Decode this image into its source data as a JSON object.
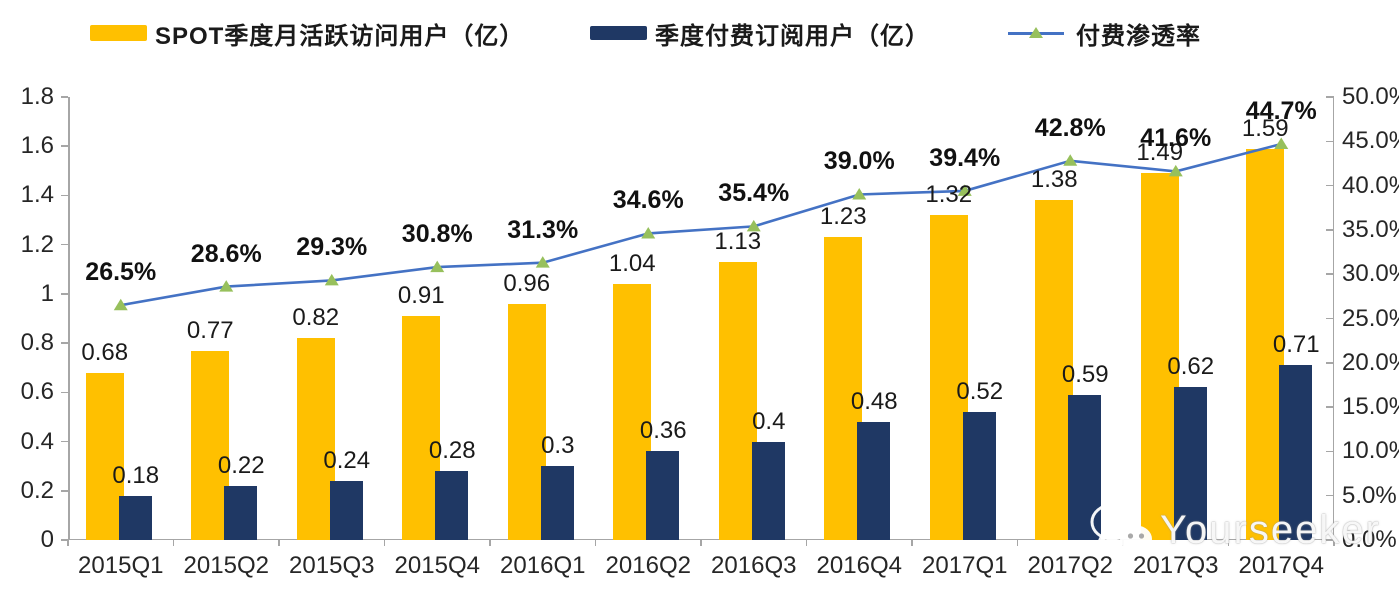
{
  "legend": {
    "items": [
      {
        "label": "SPOT季度月活跃访问用户（亿）",
        "swatch": "bar",
        "color": "#FFC000"
      },
      {
        "label": "季度付费订阅用户（亿）",
        "swatch": "bar",
        "color": "#1F3864"
      },
      {
        "label": "付费渗透率",
        "swatch": "line-marker",
        "color": "#4472C4",
        "marker_color": "#97C05C"
      }
    ]
  },
  "watermark": {
    "text": "Yourseeker",
    "icon": "wechat-icon"
  },
  "colors": {
    "mau_bar": "#FFC000",
    "subs_bar": "#1F3864",
    "line": "#4472C4",
    "marker": "#97C05C",
    "axis": "#a6a6a6",
    "label_text": "#1a1a1a"
  },
  "chart_data": {
    "type": "bar+line",
    "title": "",
    "categories": [
      "2015Q1",
      "2015Q2",
      "2015Q3",
      "2015Q4",
      "2016Q1",
      "2016Q2",
      "2016Q3",
      "2016Q4",
      "2017Q1",
      "2017Q2",
      "2017Q3",
      "2017Q4"
    ],
    "series": [
      {
        "name": "SPOT季度月活跃访问用户（亿）",
        "type": "bar",
        "axis": "left",
        "color": "#FFC000",
        "values": [
          0.68,
          0.77,
          0.82,
          0.91,
          0.96,
          1.04,
          1.13,
          1.23,
          1.32,
          1.38,
          1.49,
          1.59
        ],
        "labels": [
          "0.68",
          "0.77",
          "0.82",
          "0.91",
          "0.96",
          "1.04",
          "1.13",
          "1.23",
          "1.32",
          "1.38",
          "1.49",
          "1.59"
        ]
      },
      {
        "name": "季度付费订阅用户（亿）",
        "type": "bar",
        "axis": "left",
        "color": "#1F3864",
        "values": [
          0.18,
          0.22,
          0.24,
          0.28,
          0.3,
          0.36,
          0.4,
          0.48,
          0.52,
          0.59,
          0.62,
          0.71
        ],
        "labels": [
          "0.18",
          "0.22",
          "0.24",
          "0.28",
          "0.3",
          "0.36",
          "0.4",
          "0.48",
          "0.52",
          "0.59",
          "0.62",
          "0.71"
        ]
      },
      {
        "name": "付费渗透率",
        "type": "line",
        "axis": "right",
        "color": "#4472C4",
        "marker": "triangle",
        "marker_color": "#97C05C",
        "values": [
          26.5,
          28.6,
          29.3,
          30.8,
          31.3,
          34.6,
          35.4,
          39.0,
          39.4,
          42.8,
          41.6,
          44.7
        ],
        "labels": [
          "26.5%",
          "28.6%",
          "29.3%",
          "30.8%",
          "31.3%",
          "34.6%",
          "35.4%",
          "39.0%",
          "39.4%",
          "42.8%",
          "41.6%",
          "44.7%"
        ]
      }
    ],
    "left_axis": {
      "min": 0,
      "max": 1.8,
      "step": 0.2,
      "tick_labels": [
        "0",
        "0.2",
        "0.4",
        "0.6",
        "0.8",
        "1",
        "1.2",
        "1.4",
        "1.6",
        "1.8"
      ]
    },
    "right_axis": {
      "min": 0,
      "max": 50,
      "step": 5,
      "tick_labels": [
        "0.0%",
        "5.0%",
        "10.0%",
        "15.0%",
        "20.0%",
        "25.0%",
        "30.0%",
        "35.0%",
        "40.0%",
        "45.0%",
        "50.0%"
      ]
    },
    "grid": false,
    "legend_position": "top"
  }
}
